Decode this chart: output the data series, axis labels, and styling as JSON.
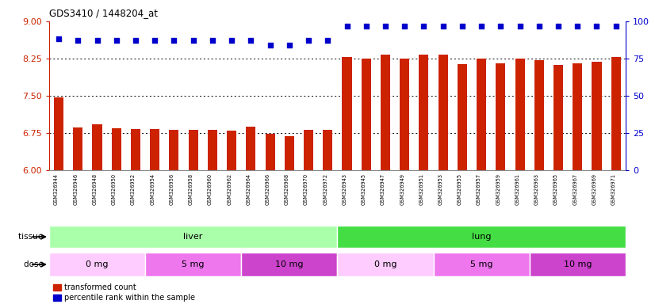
{
  "title": "GDS3410 / 1448204_at",
  "samples": [
    "GSM326944",
    "GSM326946",
    "GSM326948",
    "GSM326950",
    "GSM326952",
    "GSM326954",
    "GSM326956",
    "GSM326958",
    "GSM326960",
    "GSM326962",
    "GSM326964",
    "GSM326966",
    "GSM326968",
    "GSM326970",
    "GSM326972",
    "GSM326943",
    "GSM326945",
    "GSM326947",
    "GSM326949",
    "GSM326951",
    "GSM326953",
    "GSM326955",
    "GSM326957",
    "GSM326959",
    "GSM326961",
    "GSM326963",
    "GSM326965",
    "GSM326967",
    "GSM326969",
    "GSM326971"
  ],
  "bar_values": [
    7.47,
    6.86,
    6.93,
    6.84,
    6.83,
    6.83,
    6.81,
    6.81,
    6.81,
    6.79,
    6.87,
    6.74,
    6.68,
    6.81,
    6.81,
    8.28,
    8.25,
    8.33,
    8.25,
    8.33,
    8.33,
    8.14,
    8.25,
    8.16,
    8.25,
    8.22,
    8.12,
    8.16,
    8.18,
    8.28
  ],
  "percentile_values": [
    88,
    87,
    87,
    87,
    87,
    87,
    87,
    87,
    87,
    87,
    87,
    84,
    84,
    87,
    87,
    97,
    97,
    97,
    97,
    97,
    97,
    97,
    97,
    97,
    97,
    97,
    97,
    97,
    97,
    97
  ],
  "bar_color": "#cc2200",
  "dot_color": "#0000cc",
  "ylim_left": [
    6,
    9
  ],
  "ylim_right": [
    0,
    100
  ],
  "yticks_left": [
    6,
    6.75,
    7.5,
    8.25,
    9
  ],
  "yticks_right": [
    0,
    25,
    50,
    75,
    100
  ],
  "hlines": [
    6.75,
    7.5,
    8.25
  ],
  "tissue_groups": [
    {
      "label": "liver",
      "start": 0,
      "end": 15,
      "color": "#aaffaa"
    },
    {
      "label": "lung",
      "start": 15,
      "end": 30,
      "color": "#44dd44"
    }
  ],
  "dose_groups": [
    {
      "label": "0 mg",
      "start": 0,
      "end": 5,
      "color": "#ffccff"
    },
    {
      "label": "5 mg",
      "start": 5,
      "end": 10,
      "color": "#ee77ee"
    },
    {
      "label": "10 mg",
      "start": 10,
      "end": 15,
      "color": "#cc44cc"
    },
    {
      "label": "0 mg",
      "start": 15,
      "end": 20,
      "color": "#ffccff"
    },
    {
      "label": "5 mg",
      "start": 20,
      "end": 25,
      "color": "#ee77ee"
    },
    {
      "label": "10 mg",
      "start": 25,
      "end": 30,
      "color": "#cc44cc"
    }
  ],
  "legend_bar_label": "transformed count",
  "legend_dot_label": "percentile rank within the sample",
  "tissue_label": "tissue",
  "dose_label": "dose"
}
